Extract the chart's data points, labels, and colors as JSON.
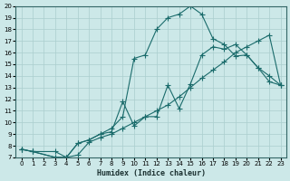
{
  "xlabel": "Humidex (Indice chaleur)",
  "background_color": "#cce8e8",
  "grid_color": "#aacece",
  "line_color": "#1a6b6b",
  "xlim": [
    -0.5,
    23.5
  ],
  "ylim": [
    7,
    20
  ],
  "xticks": [
    0,
    1,
    2,
    3,
    4,
    5,
    6,
    7,
    8,
    9,
    10,
    11,
    12,
    13,
    14,
    15,
    16,
    17,
    18,
    19,
    20,
    21,
    22,
    23
  ],
  "yticks": [
    7,
    8,
    9,
    10,
    11,
    12,
    13,
    14,
    15,
    16,
    17,
    18,
    19,
    20
  ],
  "line1_x": [
    0,
    1,
    3,
    4,
    5,
    6,
    7,
    8,
    9,
    10,
    11,
    12,
    13,
    14,
    15,
    16,
    17,
    18,
    19,
    20,
    21,
    22,
    23
  ],
  "line1_y": [
    7.7,
    7.5,
    7.5,
    7.0,
    7.2,
    8.3,
    8.7,
    9.0,
    9.5,
    10.0,
    10.5,
    11.0,
    11.5,
    12.2,
    13.0,
    13.8,
    14.5,
    15.2,
    16.0,
    16.5,
    17.0,
    17.5,
    13.2
  ],
  "line2_x": [
    0,
    1,
    3,
    4,
    5,
    6,
    7,
    8,
    9,
    10,
    11,
    12,
    13,
    14,
    15,
    16,
    17,
    18,
    19,
    20,
    21,
    22,
    23
  ],
  "line2_y": [
    7.7,
    7.5,
    7.0,
    7.0,
    8.2,
    8.5,
    9.0,
    9.5,
    10.5,
    15.5,
    15.8,
    18.0,
    19.0,
    19.3,
    20.0,
    19.3,
    17.2,
    16.7,
    15.7,
    15.8,
    14.7,
    14.0,
    13.2
  ],
  "line3_x": [
    0,
    1,
    3,
    4,
    5,
    6,
    7,
    8,
    9,
    10,
    11,
    12,
    13,
    14,
    15,
    16,
    17,
    18,
    19,
    20,
    21,
    22,
    23
  ],
  "line3_y": [
    7.7,
    7.5,
    7.0,
    7.0,
    8.2,
    8.5,
    9.0,
    9.2,
    11.8,
    9.7,
    10.5,
    10.5,
    13.2,
    11.2,
    13.3,
    15.8,
    16.5,
    16.3,
    16.7,
    15.8,
    14.7,
    13.5,
    13.2
  ]
}
